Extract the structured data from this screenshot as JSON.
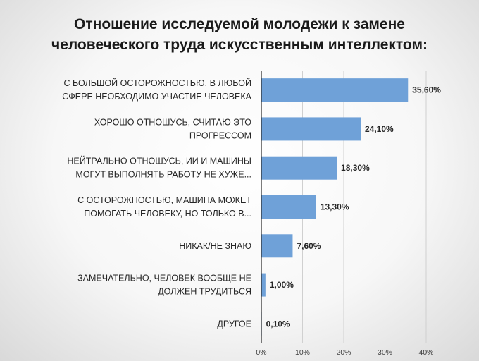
{
  "chart_data": {
    "type": "bar",
    "orientation": "horizontal",
    "title": [
      "Отношение исследуемой молодежи к замене",
      "человеческого труда искусственным интеллектом:"
    ],
    "categories": [
      [
        "С БОЛЬШОЙ ОСТОРОЖНОСТЬЮ, В ЛЮБОЙ",
        "СФЕРЕ НЕОБХОДИМО УЧАСТИЕ ЧЕЛОВЕКА"
      ],
      [
        "ХОРОШО ОТНОШУСЬ, СЧИТАЮ ЭТО",
        "ПРОГРЕССОМ"
      ],
      [
        "НЕЙТРАЛЬНО ОТНОШУСЬ, ИИ И МАШИНЫ",
        "МОГУТ ВЫПОЛНЯТЬ РАБОТУ НЕ ХУЖЕ..."
      ],
      [
        "С ОСТОРОЖНОСТЬЮ, МАШИНА МОЖЕТ",
        "ПОМОГАТЬ ЧЕЛОВЕКУ, НО ТОЛЬКО В..."
      ],
      [
        "НИКАК/НЕ ЗНАЮ"
      ],
      [
        "ЗАМЕЧАТЕЛЬНО, ЧЕЛОВЕК ВООБЩЕ НЕ",
        "ДОЛЖЕН ТРУДИТЬСЯ"
      ],
      [
        "ДРУГОЕ"
      ]
    ],
    "values": [
      35.6,
      24.1,
      18.3,
      13.3,
      7.6,
      1.0,
      0.1
    ],
    "value_labels": [
      "35,60%",
      "24,10%",
      "18,30%",
      "13,30%",
      "7,60%",
      "1,00%",
      "0,10%"
    ],
    "xlim": [
      0,
      40
    ],
    "xticks": [
      "0%",
      "10%",
      "20%",
      "30%",
      "40%"
    ],
    "grid": true,
    "bar_color": "#6fa1d8"
  }
}
